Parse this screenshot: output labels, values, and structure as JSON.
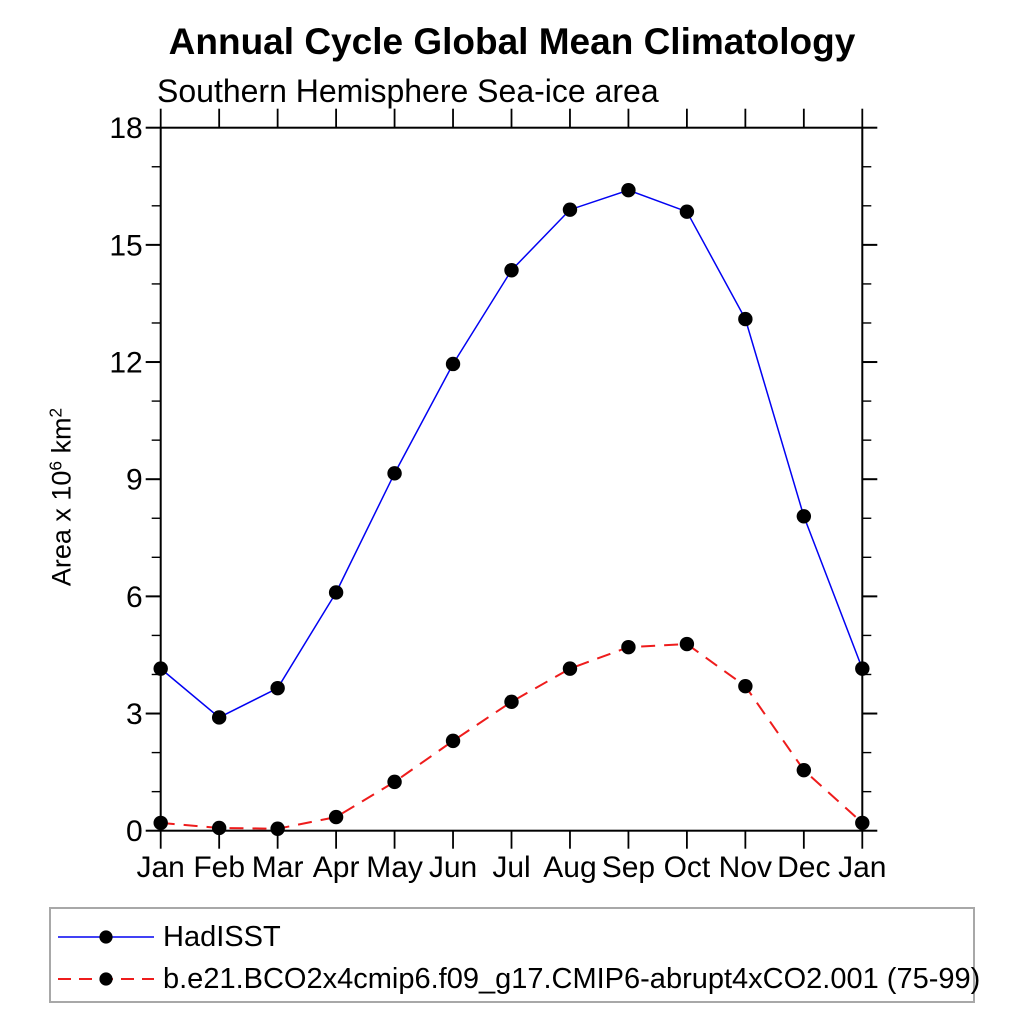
{
  "chart_data": {
    "type": "line",
    "title": "Annual Cycle Global Mean Climatology",
    "subtitle": "Southern Hemisphere Sea-ice area",
    "ylabel_plain": "Area x 10^6 km^2",
    "ylabel": {
      "prefix": "Area x 10",
      "exp1": "6",
      "mid": " km",
      "exp2": "2"
    },
    "categories": [
      "Jan",
      "Feb",
      "Mar",
      "Apr",
      "May",
      "Jun",
      "Jul",
      "Aug",
      "Sep",
      "Oct",
      "Nov",
      "Dec",
      "Jan"
    ],
    "ylim": [
      0,
      18
    ],
    "yticks_major": [
      0,
      3,
      6,
      9,
      12,
      15,
      18
    ],
    "ytick_minor_step": 1,
    "grid": false,
    "legend_position": "bottom",
    "axis_color": "#000000",
    "marker_color": "#000000",
    "series": [
      {
        "name": "HadISST",
        "color": "#0202f2",
        "line_style": "solid",
        "marker": "filled-circle",
        "values": [
          4.15,
          2.9,
          3.65,
          6.1,
          9.15,
          11.95,
          14.35,
          15.9,
          16.4,
          15.85,
          13.1,
          8.05,
          4.15
        ]
      },
      {
        "name": "b.e21.BCO2x4cmip6.f09_g17.CMIP6-abrupt4xCO2.001 (75-99)",
        "color": "#ee1c1c",
        "line_style": "dashed",
        "marker": "filled-circle",
        "values": [
          0.2,
          0.07,
          0.05,
          0.35,
          1.25,
          2.3,
          3.3,
          4.15,
          4.7,
          4.78,
          3.7,
          1.55,
          0.2
        ]
      }
    ]
  }
}
